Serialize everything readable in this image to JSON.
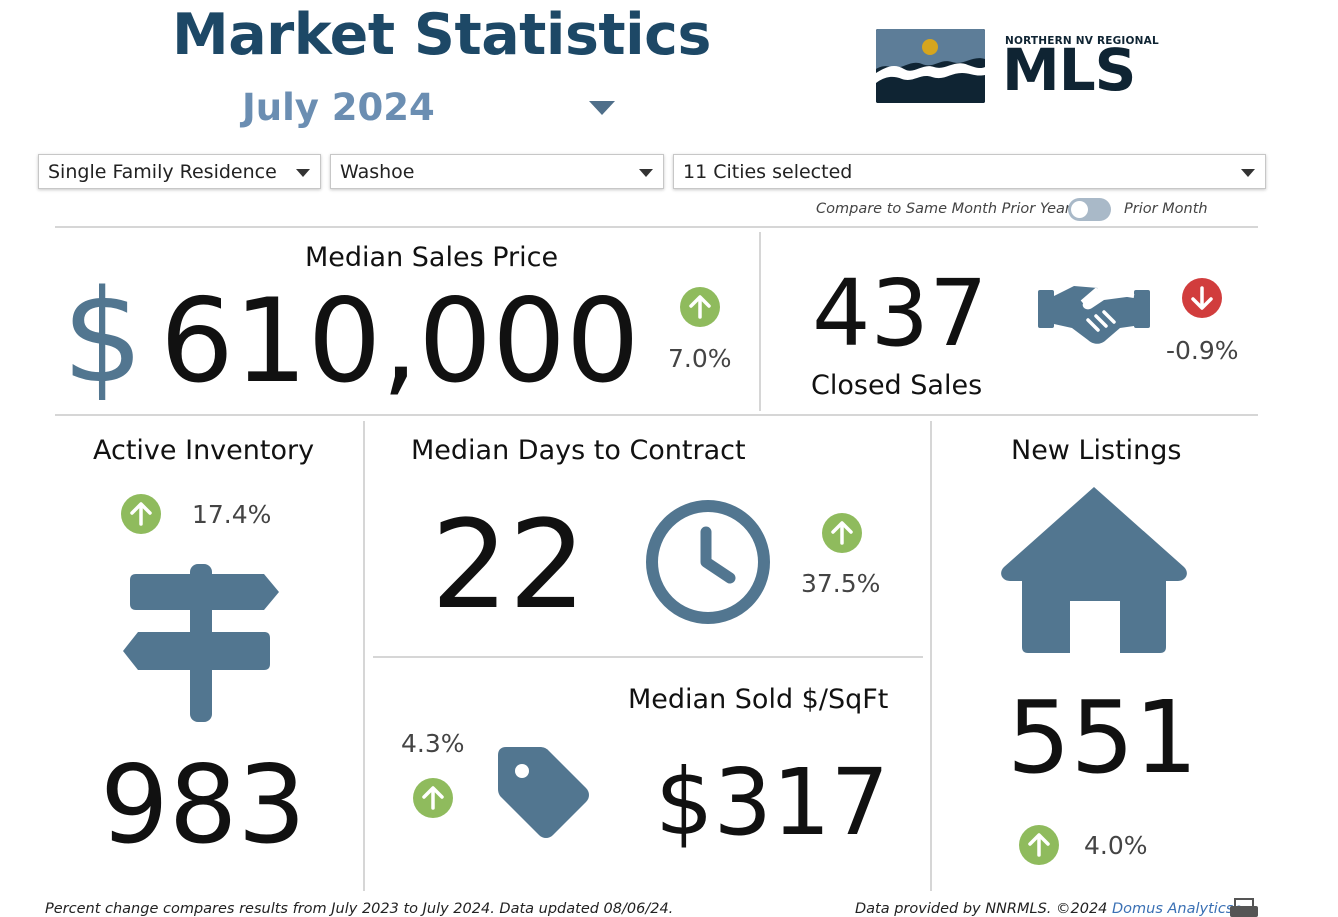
{
  "header": {
    "title": "Market Statistics",
    "month_label": "July 2024",
    "logo_small_text": "NORTHERN NV REGIONAL",
    "logo_big_text": "MLS"
  },
  "filters": {
    "property_type": "Single Family Residence",
    "county": "Washoe",
    "cities": "11 Cities selected"
  },
  "compare": {
    "left_label": "Compare to Same Month Prior Year",
    "right_label": "Prior Month",
    "toggle_on": false
  },
  "metrics": {
    "median_sales_price": {
      "label": "Median Sales Price",
      "currency_symbol": "$",
      "value": "610,000",
      "change": "7.0%",
      "direction": "up"
    },
    "closed_sales": {
      "label": "Closed Sales",
      "value": "437",
      "change": "-0.9%",
      "direction": "down"
    },
    "active_inventory": {
      "label": "Active Inventory",
      "value": "983",
      "change": "17.4%",
      "direction": "up"
    },
    "median_days_to_contract": {
      "label": "Median Days to Contract",
      "value": "22",
      "change": "37.5%",
      "direction": "up"
    },
    "median_sold_sqft": {
      "label": "Median Sold $/SqFt",
      "value": "$317",
      "change": "4.3%",
      "direction": "up"
    },
    "new_listings": {
      "label": "New Listings",
      "value": "551",
      "change": "4.0%",
      "direction": "up"
    }
  },
  "footer": {
    "note": "Percent change compares results from July 2023 to July 2024.  Data updated 08/06/24.",
    "credit_prefix": "Data provided by NNRMLS. ©2024 ",
    "credit_link": "Domus Analytics",
    "credit_suffix": "®"
  },
  "colors": {
    "title": "#1d4866",
    "icon": "#527690",
    "arrow_up": "#8fbb5d",
    "arrow_down": "#d13d3d"
  },
  "icons": [
    "dropdown-caret-icon",
    "arrow-up-icon",
    "arrow-down-icon",
    "dollar-sign-icon",
    "handshake-icon",
    "signpost-icon",
    "clock-icon",
    "price-tag-icon",
    "house-icon",
    "print-icon"
  ]
}
